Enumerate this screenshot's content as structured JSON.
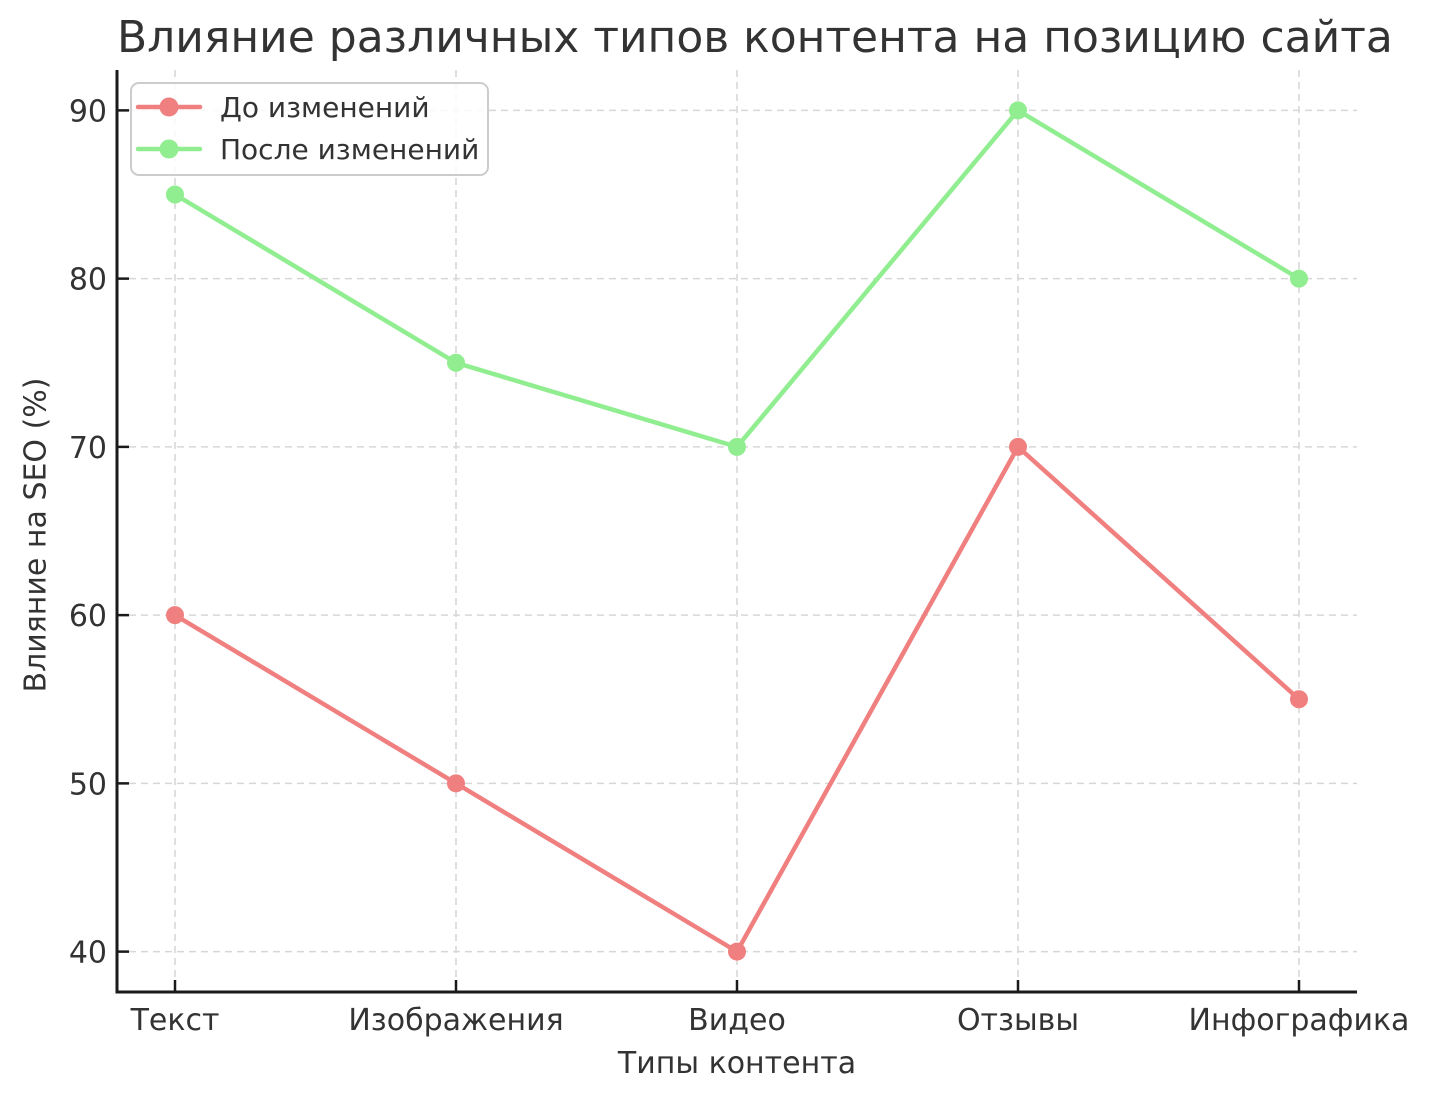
{
  "figure": {
    "background": "#ffffff"
  },
  "chart_data": {
    "type": "line",
    "title": "Влияние различных типов контента на позицию сайта",
    "xlabel": "Типы контента",
    "ylabel": "Влияние на SEO (%)",
    "categories": [
      "Текст",
      "Изображения",
      "Видео",
      "Отзывы",
      "Инфографика"
    ],
    "series": [
      {
        "name": "До изменений",
        "color": "#F08080",
        "values": [
          60,
          50,
          40,
          70,
          55
        ]
      },
      {
        "name": "После изменений",
        "color": "#90EE90",
        "values": [
          85,
          75,
          70,
          90,
          80
        ]
      }
    ],
    "yticks": [
      40,
      50,
      60,
      70,
      80,
      90
    ],
    "ylim": [
      37.6,
      92.4
    ],
    "grid": "dashed",
    "grid_color": "#d7d7d7",
    "axis_color": "#1a1a1a",
    "text_color": "#333333",
    "legend_position": "upper left"
  }
}
